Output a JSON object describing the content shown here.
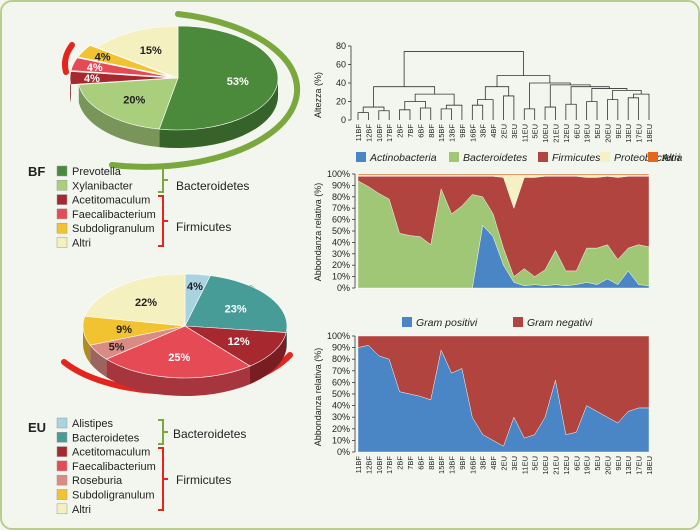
{
  "colors": {
    "prevotella": "#4a8a3a",
    "xylanibacter": "#a9cf7d",
    "acetitomaculum": "#a7282e",
    "faecalibacterium": "#e64a55",
    "subdoligranulum": "#f2c330",
    "altri": "#f5f0c0",
    "alistipes": "#a8d3e0",
    "bacteroidetes_eu": "#479c98",
    "roseburia": "#d98b84",
    "actinobacteria": "#4a86c5",
    "bacteroidetes": "#a0c775",
    "firmicutes": "#b1443f",
    "proteobacteria": "#f6f1c4",
    "altri_stack": "#e5661d",
    "gram_pos": "#4a86c5",
    "gram_neg": "#b1443f",
    "arc_green": "#7aa83c",
    "arc_red": "#e2261e"
  },
  "pie_bf": {
    "group": "BF",
    "slices": [
      {
        "name": "Prevotella",
        "value": 53,
        "label": "53%",
        "color_key": "prevotella"
      },
      {
        "name": "Xylanibacter",
        "value": 20,
        "label": "20%",
        "color_key": "xylanibacter"
      },
      {
        "name": "Acetitomaculum",
        "value": 4,
        "label": "4%",
        "color_key": "acetitomaculum"
      },
      {
        "name": "Faecalibacterium",
        "value": 4,
        "label": "4%",
        "color_key": "faecalibacterium"
      },
      {
        "name": "Subdoligranulum",
        "value": 4,
        "label": "4%",
        "color_key": "subdoligranulum"
      },
      {
        "name": "Altri",
        "value": 15,
        "label": "15%",
        "color_key": "altri"
      }
    ],
    "legend": [
      {
        "label": "Prevotella",
        "color_key": "prevotella"
      },
      {
        "label": "Xylanibacter",
        "color_key": "xylanibacter"
      },
      {
        "label": "Acetitomaculum",
        "color_key": "acetitomaculum"
      },
      {
        "label": "Faecalibacterium",
        "color_key": "faecalibacterium"
      },
      {
        "label": "Subdoligranulum",
        "color_key": "subdoligranulum"
      },
      {
        "label": "Altri",
        "color_key": "altri"
      }
    ],
    "bracket_bacteroidetes": "Bacteroidetes",
    "bracket_firmicutes": "Firmicutes"
  },
  "pie_eu": {
    "group": "EU",
    "slices": [
      {
        "name": "Alistipes",
        "value": 4,
        "label": "4%",
        "color_key": "alistipes"
      },
      {
        "name": "Bacteroidetes",
        "value": 23,
        "label": "23%",
        "color_key": "bacteroidetes_eu"
      },
      {
        "name": "Acetitomaculum",
        "value": 12,
        "label": "12%",
        "color_key": "acetitomaculum"
      },
      {
        "name": "Faecalibacterium",
        "value": 25,
        "label": "25%",
        "color_key": "faecalibacterium"
      },
      {
        "name": "Roseburia",
        "value": 5,
        "label": "5%",
        "color_key": "roseburia"
      },
      {
        "name": "Subdoligranulum",
        "value": 9,
        "label": "9%",
        "color_key": "subdoligranulum"
      },
      {
        "name": "Altri",
        "value": 22,
        "label": "22%",
        "color_key": "altri"
      }
    ],
    "legend": [
      {
        "label": "Alistipes",
        "color_key": "alistipes"
      },
      {
        "label": "Bacteroidetes",
        "color_key": "bacteroidetes_eu"
      },
      {
        "label": "Acetitomaculum",
        "color_key": "acetitomaculum"
      },
      {
        "label": "Faecalibacterium",
        "color_key": "faecalibacterium"
      },
      {
        "label": "Roseburia",
        "color_key": "roseburia"
      },
      {
        "label": "Subdoligranulum",
        "color_key": "subdoligranulum"
      },
      {
        "label": "Altri",
        "color_key": "altri"
      }
    ],
    "bracket_bacteroidetes": "Bacteroidetes",
    "bracket_firmicutes": "Firmicutes"
  },
  "dendrogram": {
    "ylabel": "Altezza (%)",
    "yticks": [
      0,
      20,
      40,
      60,
      80
    ],
    "ylim": [
      0,
      80
    ]
  },
  "sample_labels": [
    "11BF",
    "12BF",
    "10BF",
    "17BF",
    "2BF",
    "7BF",
    "6BF",
    "8BF",
    "15BF",
    "13BF",
    "9BF",
    "16BF",
    "3BF",
    "4BF",
    "2EU",
    "3EU",
    "11EU",
    "5EU",
    "10EU",
    "21EU",
    "12EU",
    "6EU",
    "19EU",
    "5EU",
    "20EU",
    "9EU",
    "13EU",
    "17EU",
    "18EU"
  ],
  "chart_data": [
    {
      "type": "area",
      "ylabel": "Abbondanza relativa (%)",
      "ylim": [
        0,
        100
      ],
      "yticks": [
        "0%",
        "10%",
        "20%",
        "30%",
        "40%",
        "50%",
        "60%",
        "70%",
        "80%",
        "90%",
        "100%"
      ],
      "legend_position": "top",
      "series": [
        {
          "name": "Actinobacteria",
          "color_key": "actinobacteria",
          "values": [
            0,
            0,
            0,
            0,
            0,
            0,
            0,
            0,
            0,
            0,
            0,
            0,
            55,
            45,
            20,
            5,
            2,
            3,
            2,
            3,
            2,
            3,
            5,
            3,
            8,
            3,
            15,
            3,
            2
          ]
        },
        {
          "name": "Bacteroidetes",
          "color_key": "bacteroidetes",
          "values": [
            94,
            89,
            83,
            78,
            48,
            46,
            45,
            38,
            87,
            65,
            72,
            82,
            25,
            20,
            15,
            5,
            15,
            7,
            14,
            30,
            13,
            12,
            30,
            32,
            30,
            22,
            20,
            35,
            34
          ]
        },
        {
          "name": "Firmicutes",
          "color_key": "firmicutes",
          "values": [
            4,
            9,
            15,
            20,
            50,
            52,
            53,
            60,
            11,
            33,
            26,
            16,
            18,
            33,
            62,
            60,
            80,
            87,
            82,
            65,
            83,
            83,
            62,
            62,
            60,
            72,
            63,
            60,
            62
          ]
        },
        {
          "name": "Proteobacteria",
          "color_key": "proteobacteria",
          "values": [
            1,
            1,
            1,
            1,
            1,
            1,
            1,
            1,
            1,
            1,
            1,
            1,
            1,
            1,
            2,
            29,
            2,
            2,
            1,
            1,
            1,
            1,
            2,
            2,
            1,
            2,
            1,
            1,
            1
          ]
        },
        {
          "name": "Altri",
          "color_key": "altri_stack",
          "values": [
            1,
            1,
            1,
            1,
            1,
            1,
            1,
            1,
            1,
            1,
            1,
            1,
            1,
            1,
            1,
            1,
            1,
            1,
            1,
            1,
            1,
            1,
            1,
            1,
            1,
            1,
            1,
            1,
            1
          ]
        }
      ]
    },
    {
      "type": "area",
      "ylabel": "Abbondanza relativa (%)",
      "ylim": [
        0,
        100
      ],
      "yticks": [
        "0%",
        "10%",
        "20%",
        "30%",
        "40%",
        "50%",
        "60%",
        "70%",
        "80%",
        "90%",
        "100%"
      ],
      "legend_position": "top",
      "series": [
        {
          "name": "Gram positivi",
          "color_key": "gram_pos",
          "values": [
            90,
            92,
            83,
            80,
            52,
            50,
            48,
            45,
            88,
            68,
            72,
            30,
            15,
            10,
            5,
            30,
            12,
            15,
            30,
            62,
            15,
            17,
            40,
            35,
            30,
            25,
            35,
            38,
            38
          ]
        },
        {
          "name": "Gram negativi",
          "color_key": "gram_neg",
          "values": [
            10,
            8,
            17,
            20,
            48,
            50,
            52,
            55,
            12,
            32,
            28,
            70,
            85,
            90,
            95,
            70,
            88,
            85,
            70,
            38,
            85,
            83,
            60,
            65,
            70,
            75,
            65,
            62,
            62
          ]
        }
      ]
    }
  ]
}
